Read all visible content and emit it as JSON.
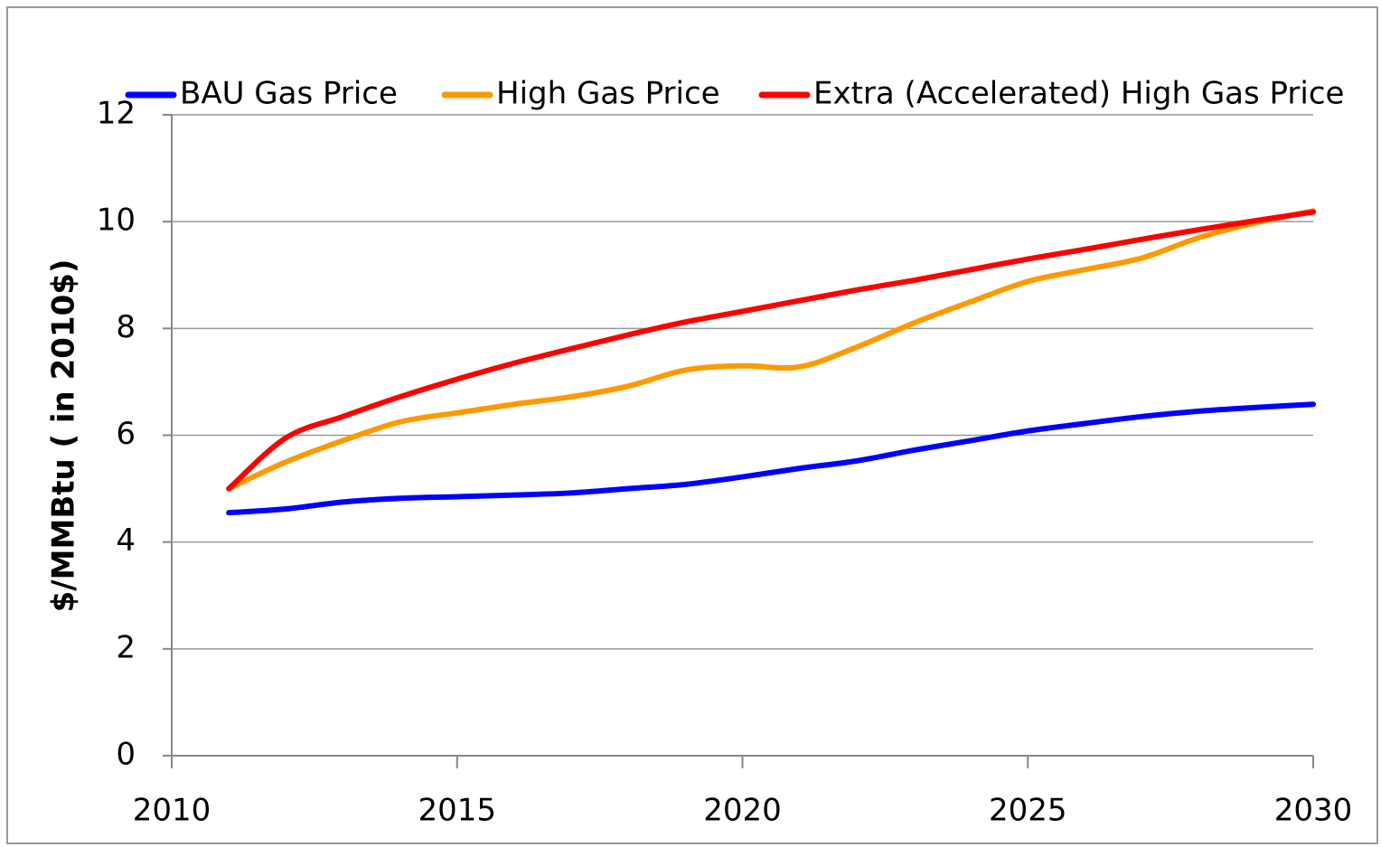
{
  "chart_data": {
    "type": "line",
    "y_label": "$/MMBtu ( in 2010$)",
    "x": [
      2011,
      2012,
      2013,
      2014,
      2015,
      2016,
      2017,
      2018,
      2019,
      2020,
      2021,
      2022,
      2023,
      2024,
      2025,
      2026,
      2027,
      2028,
      2029,
      2030
    ],
    "series": [
      {
        "name": "BAU Gas Price",
        "color": "#0000ff",
        "values": [
          4.55,
          4.62,
          4.75,
          4.82,
          4.85,
          4.88,
          4.92,
          5.0,
          5.08,
          5.22,
          5.38,
          5.52,
          5.72,
          5.9,
          6.08,
          6.22,
          6.35,
          6.45,
          6.52,
          6.58
        ]
      },
      {
        "name": "High Gas Price",
        "color": "#ff9900",
        "values": [
          5.0,
          5.5,
          5.9,
          6.25,
          6.42,
          6.58,
          6.72,
          6.92,
          7.22,
          7.3,
          7.28,
          7.65,
          8.1,
          8.5,
          8.88,
          9.1,
          9.32,
          9.7,
          9.98,
          10.2
        ]
      },
      {
        "name": "Extra (Accelerated) High Gas Price",
        "color": "#ff0000",
        "values": [
          5.0,
          5.95,
          6.35,
          6.72,
          7.05,
          7.35,
          7.62,
          7.88,
          8.12,
          8.32,
          8.52,
          8.72,
          8.9,
          9.1,
          9.3,
          9.48,
          9.67,
          9.85,
          10.02,
          10.18
        ]
      }
    ],
    "xlim": [
      2010,
      2030
    ],
    "xticks": [
      2010,
      2015,
      2020,
      2025,
      2030
    ],
    "ylim": [
      0,
      12
    ],
    "yticks": [
      0,
      2,
      4,
      6,
      8,
      10,
      12
    ],
    "grid": true,
    "legend": "top"
  }
}
